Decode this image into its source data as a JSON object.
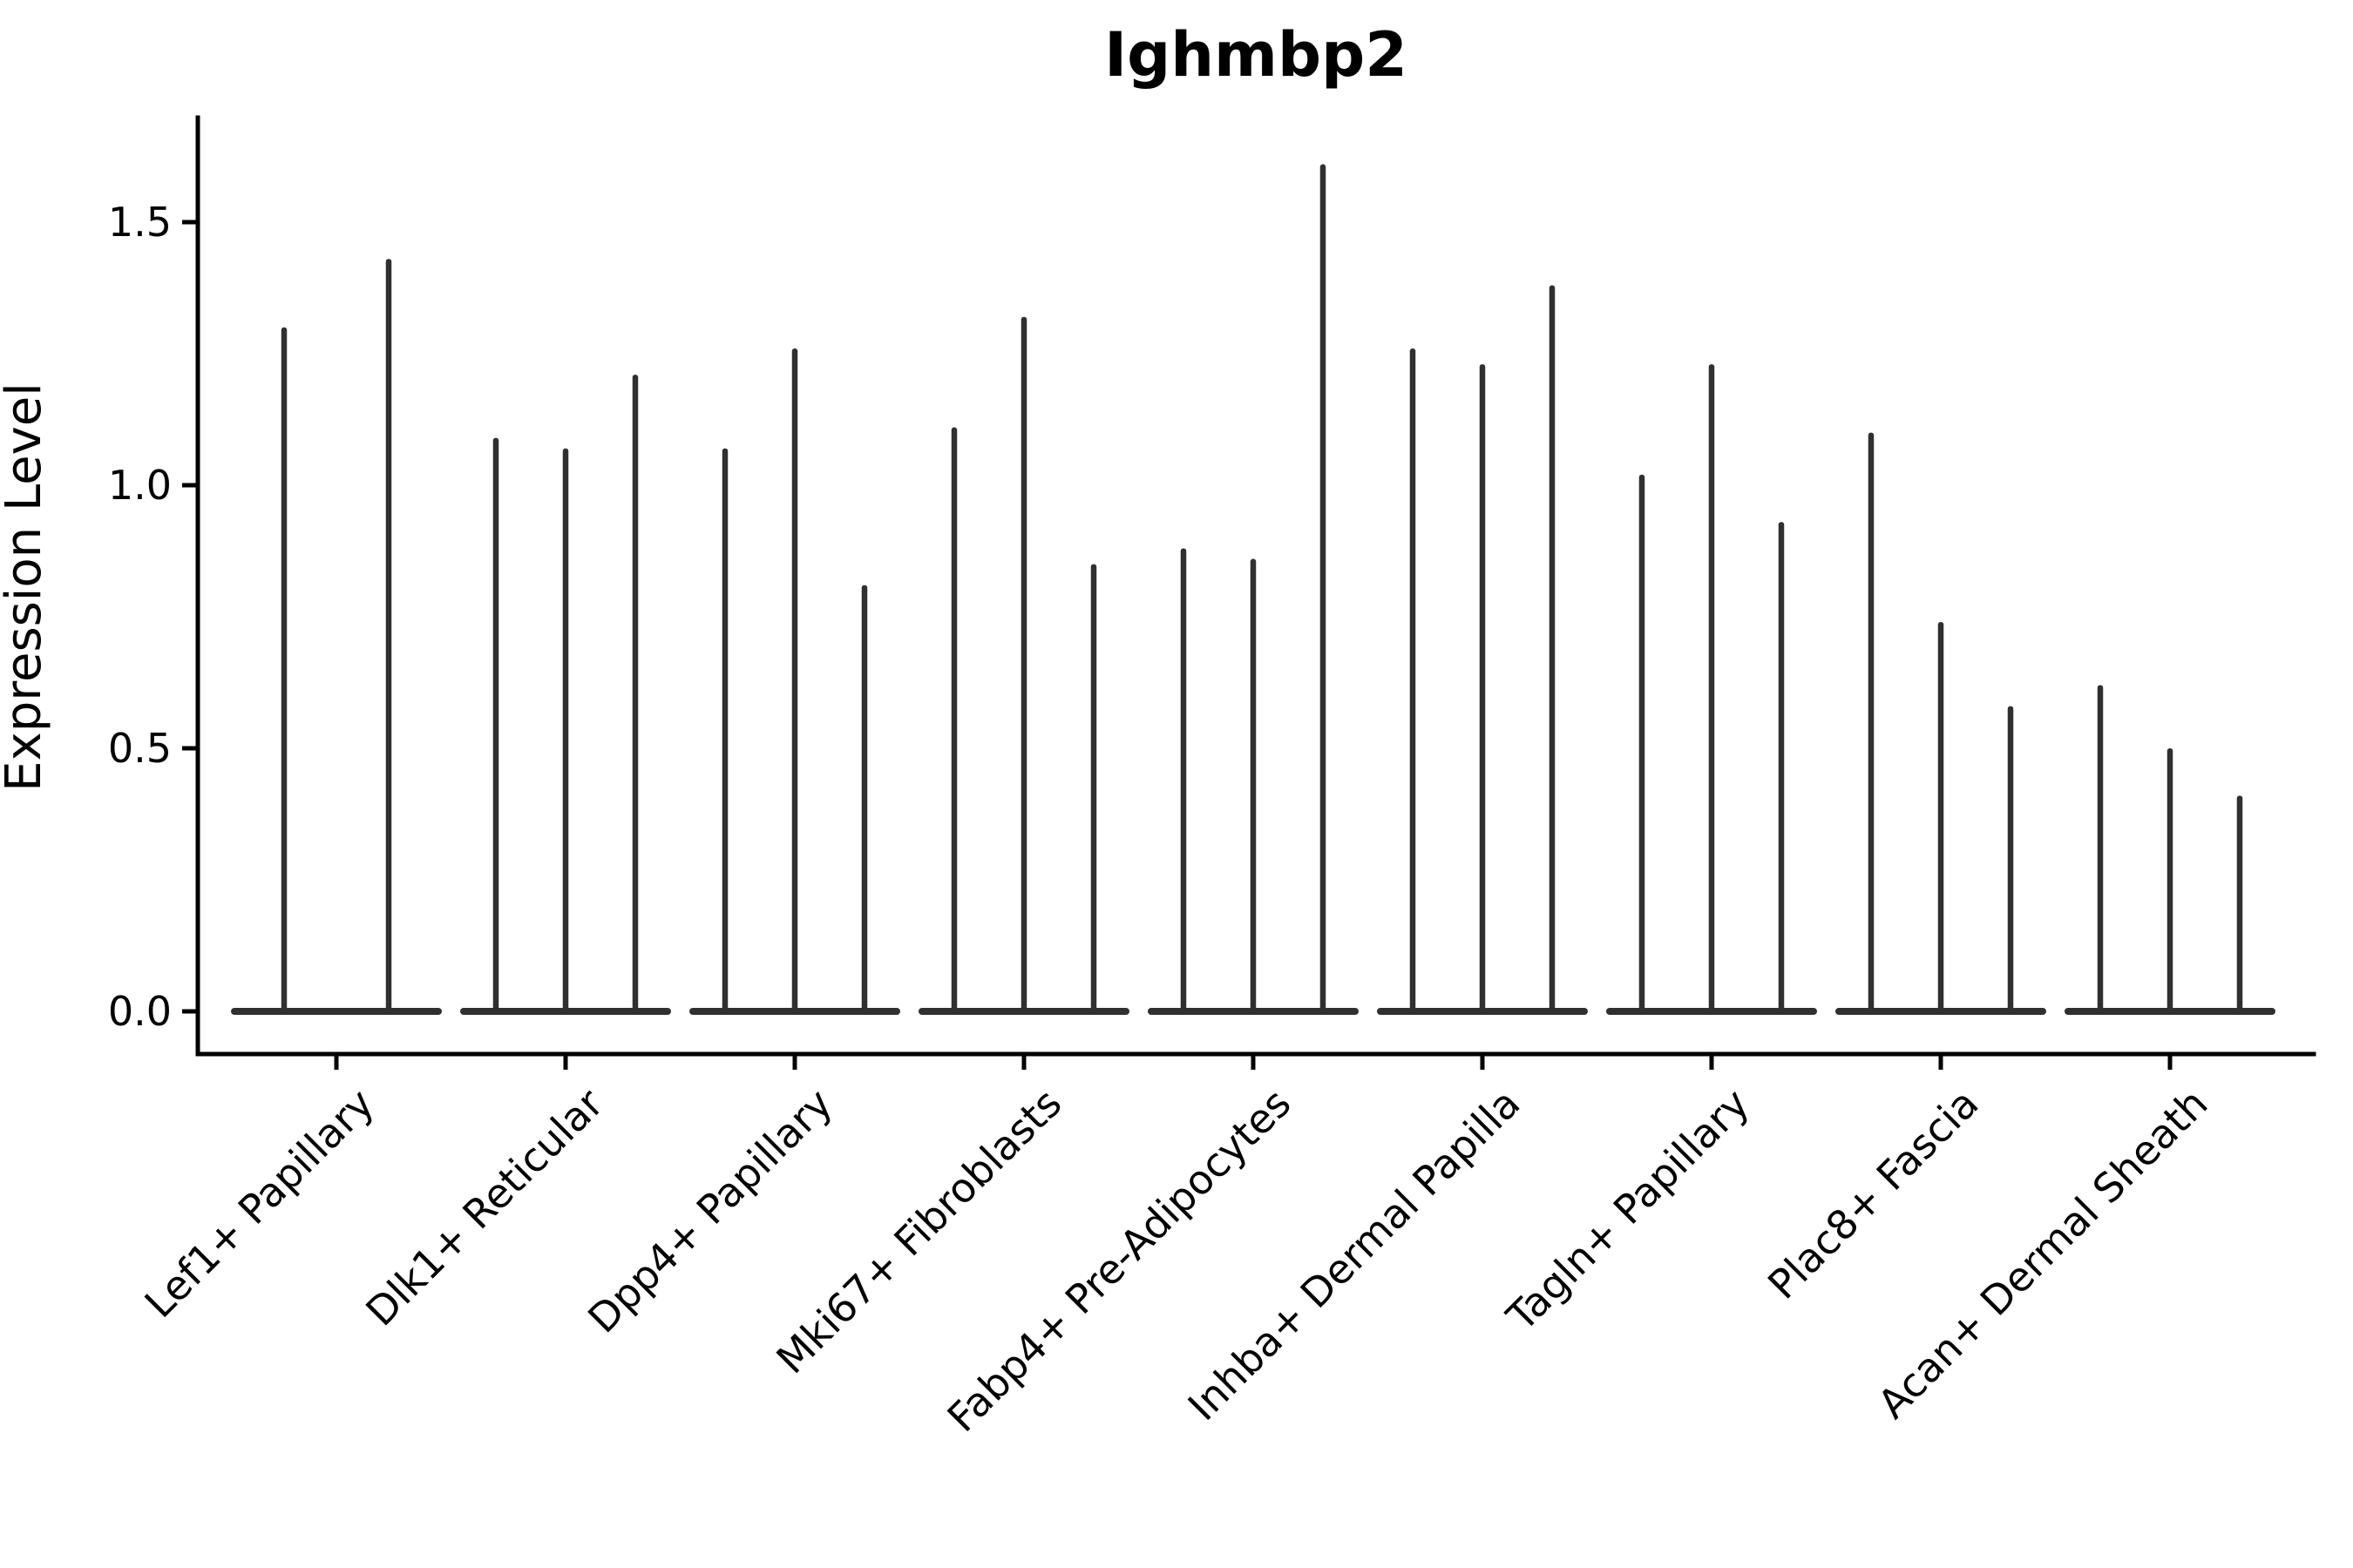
{
  "chart_data": {
    "type": "violin",
    "title": "Ighmbp2",
    "ylabel": "Expression Level",
    "xlabel": "",
    "ylim": [
      -0.08,
      1.7
    ],
    "grid": false,
    "legend": "none",
    "yticks": [
      {
        "label": "0.0",
        "value": 0.0
      },
      {
        "label": "0.5",
        "value": 0.5
      },
      {
        "label": "1.0",
        "value": 1.0
      },
      {
        "label": "1.5",
        "value": 1.5
      }
    ],
    "categories": [
      "Lef1+ Papillary",
      "Dlk1+ Reticular",
      "Dpp4+ Papillary",
      "Mki67+ Fibroblasts",
      "Fabp4+ Pre-Adipocytes",
      "Inhba+ Dermal Papilla",
      "Tagln+ Papillary",
      "Plac8+ Fascia",
      "Acan+ Dermal Sheath"
    ],
    "groups": [
      {
        "category": "Lef1+ Papillary",
        "violin_maxima": [
          1.3,
          1.43
        ]
      },
      {
        "category": "Dlk1+ Reticular",
        "violin_maxima": [
          1.09,
          1.07,
          1.21
        ]
      },
      {
        "category": "Dpp4+ Papillary",
        "violin_maxima": [
          1.07,
          1.26,
          0.81
        ]
      },
      {
        "category": "Mki67+ Fibroblasts",
        "violin_maxima": [
          1.11,
          1.32,
          0.85
        ]
      },
      {
        "category": "Fabp4+ Pre-Adipocytes",
        "violin_maxima": [
          0.88,
          0.86,
          1.61
        ]
      },
      {
        "category": "Inhba+ Dermal Papilla",
        "violin_maxima": [
          1.26,
          1.23,
          1.38
        ]
      },
      {
        "category": "Tagln+ Papillary",
        "violin_maxima": [
          1.02,
          1.23,
          0.93
        ]
      },
      {
        "category": "Plac8+ Fascia",
        "violin_maxima": [
          1.1,
          0.74,
          0.58
        ]
      },
      {
        "category": "Acan+ Dermal Sheath",
        "violin_maxima": [
          0.62,
          0.5,
          0.41
        ]
      }
    ],
    "baseline_value": 0.0,
    "colors": {
      "violin": "#303030",
      "axis": "#000000",
      "text": "#000000",
      "background": "#ffffff"
    }
  }
}
